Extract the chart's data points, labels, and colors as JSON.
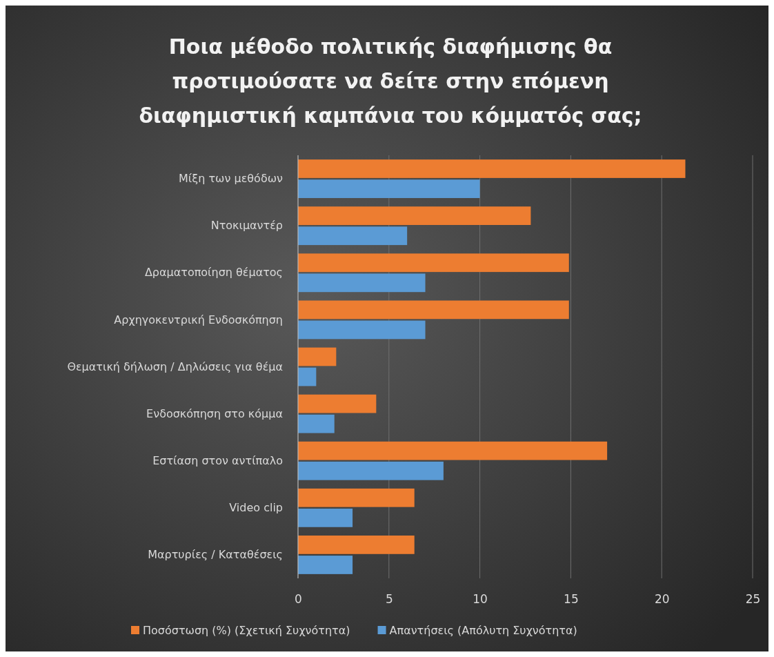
{
  "chart_data": {
    "type": "bar",
    "orientation": "horizontal",
    "title": "Ποια μέθοδο πολιτικής διαφήμισης θα προτιμούσατε να δείτε στην επόμενη διαφημιστική καμπάνια του κόμματός σας;",
    "categories": [
      "Μίξη των μεθόδων",
      "Ντοκιμαντέρ",
      "Δραματοποίηση θέματος",
      "Αρχηγοκεντρική Ενδοσκόπηση",
      "Θεματική δήλωση / Δηλώσεις για θέμα",
      "Ενδοσκόπηση στο κόμμα",
      "Εστίαση στον αντίπαλο",
      "Video clip",
      "Μαρτυρίες / Καταθέσεις"
    ],
    "series": [
      {
        "name": "Ποσόστωση (%) (Σχετική Συχνότητα)",
        "color": "#ed7d31",
        "values": [
          21.3,
          12.8,
          14.9,
          14.9,
          2.1,
          4.3,
          17.0,
          6.4,
          6.4
        ]
      },
      {
        "name": "Απαντήσεις (Απόλυτη Συχνότητα)",
        "color": "#5b9bd5",
        "values": [
          10,
          6,
          7,
          7,
          1,
          2,
          8,
          3,
          3
        ]
      }
    ],
    "xlim": [
      0,
      25
    ],
    "xticks": [
      0,
      5,
      10,
      15,
      20,
      25
    ],
    "grid": "x",
    "legend": "bottom"
  }
}
